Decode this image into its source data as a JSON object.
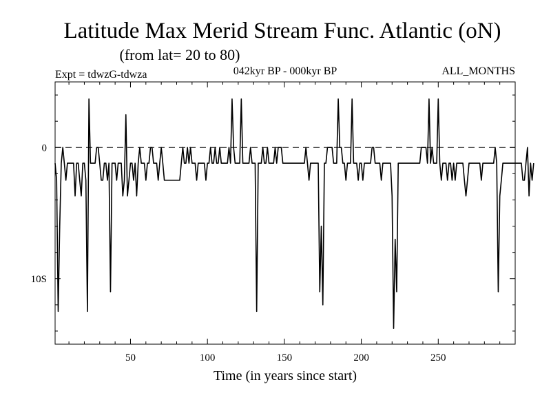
{
  "header": {
    "title": "Latitude Max Merid Stream Func. Atlantic (oN)",
    "subtitle": "(from lat= 20 to 80)",
    "experiment": "Expt = tdwzG-tdwza",
    "period": "042kyr BP - 000kyr BP",
    "months": "ALL_MONTHS"
  },
  "chart_data": {
    "type": "line",
    "title": "Latitude Max Merid Stream Func. Atlantic (oN)",
    "xlabel": "Time (in years since start)",
    "ylabel": "",
    "xlim": [
      1,
      300
    ],
    "ylim": [
      -15,
      5
    ],
    "x_ticks": [
      50,
      100,
      150,
      200,
      250
    ],
    "x_tick_labels": [
      "50",
      "100",
      "150",
      "200",
      "250"
    ],
    "y_ticks": [
      0,
      -10
    ],
    "y_tick_labels": [
      "0",
      "10S"
    ],
    "reference_line": {
      "y": 0,
      "style": "dashed"
    },
    "series": [
      {
        "name": "latitude max",
        "x_start": 1,
        "x_step": 1,
        "values": [
          -1.2,
          -2.5,
          -12.5,
          -6,
          -1.2,
          0,
          -1.2,
          -2.5,
          -1.2,
          -1.2,
          -1.2,
          -1.2,
          -1.2,
          -3.7,
          -1.2,
          -1.2,
          -2.5,
          -3.7,
          -1.2,
          -1.2,
          -2.5,
          -12.5,
          3.7,
          -1.2,
          -1.2,
          -1.2,
          -1.2,
          0,
          0,
          -1.2,
          -2.5,
          -2.5,
          -1.2,
          -1.2,
          -2.5,
          -1.2,
          -11,
          -1.2,
          -1.2,
          -1.2,
          -2.5,
          -1.2,
          -1.2,
          -1.2,
          -3.7,
          -2.5,
          2.5,
          -3.7,
          -2.5,
          -1.2,
          -1.2,
          -2.5,
          -1.2,
          -3.7,
          -1.2,
          0,
          -1.2,
          -1.2,
          -1.2,
          -2.5,
          -1.2,
          -1.2,
          0,
          0,
          -1.2,
          -1.2,
          -1.2,
          -2.5,
          -1.2,
          0,
          -1.2,
          -2.5,
          -2.5,
          -2.5,
          -2.5,
          -2.5,
          -2.5,
          -2.5,
          -2.5,
          -2.5,
          -2.5,
          -2.5,
          -1.2,
          0,
          -1.2,
          -1.2,
          0,
          -1.2,
          0,
          -1.2,
          -1.2,
          -1.2,
          -2.5,
          -1.2,
          -1.2,
          -1.2,
          -1.2,
          -1.2,
          -2.5,
          -1.2,
          -1.2,
          0,
          -1.2,
          -1.2,
          0,
          -1.2,
          -1.2,
          0,
          -1.2,
          -1.2,
          -1.2,
          -1.2,
          -1.2,
          0,
          -1.2,
          3.7,
          0,
          -1.2,
          -1.2,
          -1.2,
          -1.2,
          3.7,
          -1.2,
          -1.2,
          -1.2,
          -1.2,
          -1.2,
          0,
          -1.2,
          -1.2,
          -1.2,
          -12.5,
          -1.2,
          -1.2,
          -1.2,
          0,
          -1.2,
          -1.2,
          0,
          -1.2,
          -1.2,
          -1.2,
          -1.2,
          0,
          -1.2,
          0,
          0,
          0,
          -1.2,
          -1.2,
          -1.2,
          -1.2,
          -1.2,
          -1.2,
          -1.2,
          -1.2,
          -1.2,
          -1.2,
          -1.2,
          -1.2,
          -1.2,
          -1.2,
          -1.2,
          0,
          -1.2,
          -2.5,
          -1.2,
          -1.2,
          -1.2,
          -1.2,
          -1.2,
          -1.2,
          -11,
          -6,
          -12,
          -1.2,
          -1.2,
          0,
          0,
          0,
          0,
          -1.2,
          -1.2,
          -1.2,
          3.7,
          0,
          0,
          -1.2,
          -1.2,
          -2.5,
          -1.2,
          -1.2,
          -1.2,
          3.7,
          -1.2,
          -1.2,
          -1.2,
          -2.5,
          -1.2,
          -1.2,
          -2.5,
          -1.2,
          -1.2,
          -1.2,
          -1.2,
          -1.2,
          0,
          0,
          -1.2,
          -1.2,
          -1.2,
          -1.2,
          -2.5,
          -1.2,
          -1.2,
          -1.2,
          -1.2,
          -1.2,
          -1.2,
          -3.7,
          -13.8,
          -7,
          -11,
          -1.2,
          -1.2,
          -1.2,
          -1.2,
          -1.2,
          -1.2,
          -1.2,
          -1.2,
          -1.2,
          -1.2,
          -1.2,
          -1.2,
          -1.2,
          -1.2,
          -1.2,
          0,
          0,
          0,
          0,
          -1.2,
          3.7,
          -1.2,
          0,
          -1.2,
          -1.2,
          -1.2,
          3.7,
          -1.2,
          -2.5,
          -1.2,
          -1.2,
          -1.2,
          -2.5,
          -1.2,
          -1.2,
          -2.5,
          -1.2,
          -2.5,
          -1.2,
          -1.2,
          -1.2,
          -1.2,
          -1.2,
          -2.5,
          -3.7,
          -2.5,
          -1.2,
          -1.2,
          -1.2,
          -1.2,
          -1.2,
          -1.2,
          -1.2,
          -1.2,
          -2.5,
          -1.2,
          -1.2,
          -1.2,
          -1.2,
          -1.2,
          -1.2,
          -1.2,
          -1.2,
          0,
          -1.2,
          -11,
          -3.7,
          -2.5,
          -1.2,
          -1.2,
          -1.2,
          -1.2,
          -1.2,
          -1.2,
          -1.2,
          -1.2,
          -1.2,
          -1.2,
          -1.2,
          -1.2,
          -1.2,
          -2.5,
          -2.5,
          -1.2,
          0,
          -3.7,
          -1.2,
          -2.5,
          -1.2
        ]
      }
    ]
  }
}
